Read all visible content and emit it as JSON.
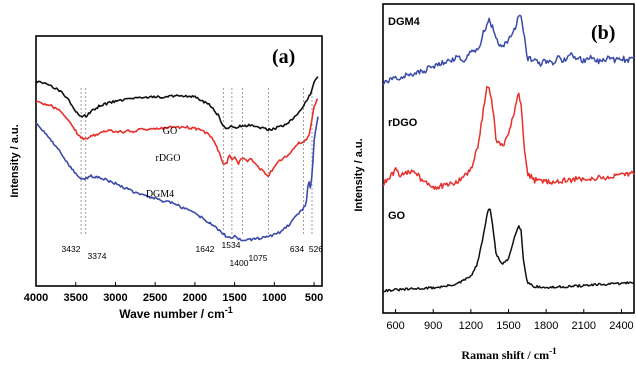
{
  "chart_data": [
    {
      "id": "a",
      "type": "line",
      "panel_label": "(a)",
      "xlabel": "Wave number / cm",
      "xlabel_sup": "-1",
      "ylabel": "Intensity / a.u.",
      "xlim": [
        4000,
        400
      ],
      "xticks": [
        4000,
        3500,
        3000,
        2500,
        2000,
        1500,
        1000,
        500
      ],
      "xtick_labels": [
        "4000",
        "3500",
        "3000",
        "2500",
        "2000",
        "1500",
        "1000",
        "500"
      ],
      "ylim": [
        0,
        100
      ],
      "grid": false,
      "colors": {
        "GO": "#111111",
        "rDGO": "#e8302c",
        "DGM4": "#3b4ba8"
      },
      "series": [
        {
          "name": "GO",
          "x": [
            4000,
            3900,
            3800,
            3700,
            3600,
            3500,
            3432,
            3374,
            3300,
            3200,
            3100,
            3000,
            2900,
            2800,
            2700,
            2500,
            2300,
            2100,
            2000,
            1900,
            1800,
            1700,
            1642,
            1600,
            1534,
            1500,
            1400,
            1300,
            1200,
            1075,
            1000,
            900,
            800,
            700,
            634,
            600,
            526,
            500,
            450
          ],
          "y": [
            82,
            81,
            80,
            78,
            75,
            70,
            68,
            68,
            70,
            72,
            73,
            74,
            74.5,
            75,
            75.5,
            75.5,
            76,
            76,
            75.5,
            74,
            72,
            68,
            64,
            63,
            64,
            63.5,
            64,
            64.5,
            63.5,
            62.5,
            63,
            64,
            66,
            69,
            72,
            74,
            78,
            82,
            84
          ]
        },
        {
          "name": "rDGO",
          "x": [
            4000,
            3900,
            3800,
            3700,
            3600,
            3500,
            3432,
            3374,
            3300,
            3200,
            3100,
            3000,
            2900,
            2850,
            2800,
            2700,
            2500,
            2300,
            2100,
            2000,
            1900,
            1800,
            1700,
            1642,
            1600,
            1560,
            1534,
            1500,
            1450,
            1400,
            1350,
            1300,
            1250,
            1200,
            1075,
            1000,
            900,
            800,
            700,
            634,
            600,
            560,
            526,
            500,
            450
          ],
          "y": [
            74,
            73,
            72,
            70,
            67,
            62,
            59,
            59,
            60,
            61,
            62,
            62,
            61.5,
            62.5,
            61.5,
            62.5,
            63,
            63.5,
            63.5,
            63,
            62,
            60,
            54,
            49,
            49,
            53,
            50,
            52,
            49,
            51.5,
            50,
            51,
            49,
            47.5,
            44,
            48,
            51,
            53,
            57,
            58,
            58,
            61,
            67,
            72,
            75
          ]
        },
        {
          "name": "DGM4",
          "x": [
            4000,
            3900,
            3800,
            3700,
            3600,
            3500,
            3432,
            3374,
            3300,
            3200,
            3000,
            2800,
            2600,
            2400,
            2300,
            2200,
            2000,
            1800,
            1642,
            1600,
            1534,
            1500,
            1400,
            1300,
            1200,
            1075,
            1000,
            900,
            800,
            700,
            634,
            600,
            570,
            550,
            526,
            500,
            450
          ],
          "y": [
            65,
            62,
            58,
            54,
            49,
            45,
            42.5,
            43,
            44,
            43.5,
            41,
            38,
            36,
            34,
            33.5,
            32,
            29,
            25,
            21,
            19.5,
            19,
            20,
            18,
            18.5,
            19,
            20,
            20.5,
            22,
            25,
            29,
            31,
            33,
            43,
            39,
            44,
            58,
            68
          ]
        }
      ],
      "annotations": [
        {
          "text": "GO",
          "series": "GO"
        },
        {
          "text": "rDGO",
          "series": "rDGO"
        },
        {
          "text": "DGM4",
          "series": "DGM4"
        },
        {
          "text": "3432",
          "x": 3432
        },
        {
          "text": "3374",
          "x": 3374
        },
        {
          "text": "1642",
          "x": 1642
        },
        {
          "text": "1534",
          "x": 1534
        },
        {
          "text": "1400",
          "x": 1400
        },
        {
          "text": "1075",
          "x": 1075
        },
        {
          "text": "634",
          "x": 634
        },
        {
          "text": "526",
          "x": 526
        }
      ]
    },
    {
      "id": "b",
      "type": "line",
      "panel_label": "(b)",
      "xlabel": "Raman shift / cm",
      "xlabel_sup": "-1",
      "ylabel": "Intensity / a.u.",
      "xlim": [
        500,
        2500
      ],
      "xticks": [
        600,
        900,
        1200,
        1500,
        1800,
        2100,
        2400
      ],
      "xtick_labels": [
        "600",
        "900",
        "1200",
        "1500",
        "1800",
        "2100",
        "2400"
      ],
      "ylim": [
        0,
        100
      ],
      "grid": false,
      "colors": {
        "GO": "#111111",
        "rDGO": "#e8302c",
        "DGM4": "#3b4ba8"
      },
      "series": [
        {
          "name": "GO",
          "x": [
            500,
            700,
            900,
            1000,
            1100,
            1200,
            1250,
            1300,
            1330,
            1350,
            1370,
            1400,
            1450,
            1500,
            1550,
            1580,
            1600,
            1620,
            1650,
            1700,
            1800,
            2000,
            2200,
            2400,
            2500
          ],
          "y": [
            5,
            5.5,
            6,
            6.5,
            7.5,
            10,
            14,
            24,
            32,
            34,
            29,
            18,
            14,
            16,
            24,
            28,
            26,
            15,
            8,
            6.5,
            6,
            6.5,
            7,
            7.5,
            8
          ]
        },
        {
          "name": "rDGO",
          "x": [
            500,
            550,
            600,
            650,
            700,
            750,
            800,
            850,
            900,
            1000,
            1100,
            1200,
            1250,
            1300,
            1330,
            1350,
            1370,
            1400,
            1450,
            1500,
            1550,
            1580,
            1600,
            1620,
            1650,
            1700,
            1800,
            1900,
            2000,
            2100,
            2200,
            2300,
            2400,
            2500
          ],
          "y": [
            42,
            44,
            47,
            45,
            46,
            47,
            44,
            43,
            41,
            41.5,
            43,
            47,
            54,
            68,
            76,
            75,
            70,
            58,
            55,
            59,
            68,
            73,
            70,
            57,
            46,
            43.5,
            43,
            43,
            43.5,
            44,
            44,
            44.5,
            45,
            46
          ]
        },
        {
          "name": "DGM4",
          "x": [
            500,
            600,
            700,
            800,
            900,
            1000,
            1100,
            1150,
            1200,
            1250,
            1280,
            1300,
            1330,
            1350,
            1370,
            1400,
            1430,
            1460,
            1500,
            1550,
            1580,
            1600,
            1620,
            1650,
            1700,
            1750,
            1800,
            1850,
            1900,
            1950,
            2000,
            2050,
            2100,
            2150,
            2200,
            2250,
            2300,
            2350,
            2400,
            2450,
            2500
          ],
          "y": [
            77,
            79,
            80,
            81,
            83,
            85,
            86,
            85,
            89,
            89,
            91,
            95,
            98,
            99,
            97,
            92,
            91,
            90,
            92,
            96,
            100,
            101,
            95,
            86,
            85,
            84,
            85,
            84,
            86,
            85,
            87,
            86,
            85,
            86,
            85,
            85,
            86,
            85,
            86,
            85,
            87
          ]
        }
      ],
      "annotations": [
        {
          "text": "DGM4",
          "series": "DGM4"
        },
        {
          "text": "rDGO",
          "series": "rDGO"
        },
        {
          "text": "GO",
          "series": "GO"
        }
      ]
    }
  ]
}
